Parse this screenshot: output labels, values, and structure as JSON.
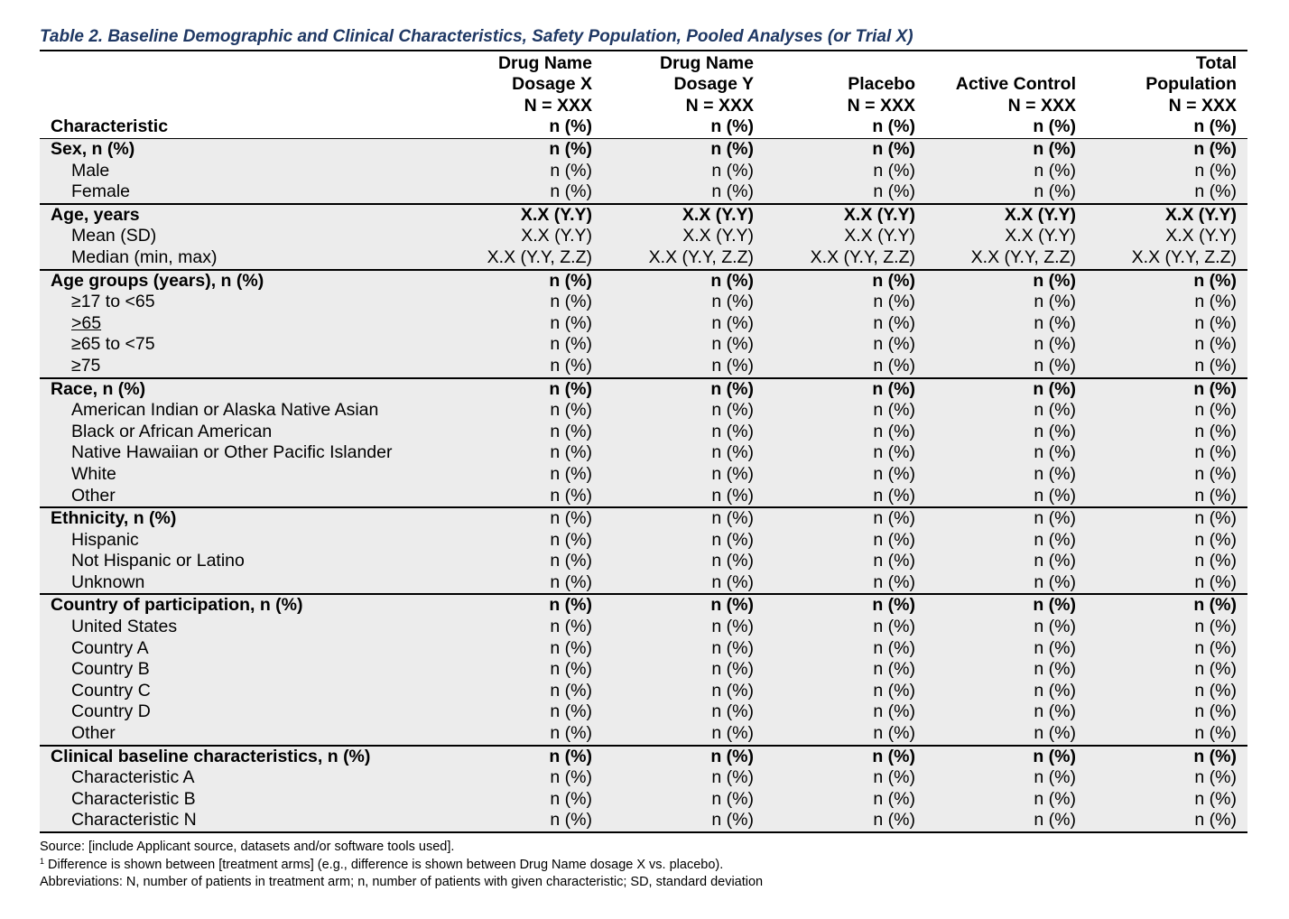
{
  "title": "Table 2. Baseline Demographic and Clinical Characteristics, Safety Population, Pooled Analyses (or Trial X)",
  "header": {
    "characteristic": "Characteristic",
    "columns": [
      {
        "line1": "Drug Name",
        "line2": "Dosage X",
        "line3": "N = XXX",
        "line4": "n (%)"
      },
      {
        "line1": "Drug Name",
        "line2": "Dosage Y",
        "line3": "N = XXX",
        "line4": "n (%)"
      },
      {
        "line1": "",
        "line2": "Placebo",
        "line3": "N = XXX",
        "line4": "n (%)"
      },
      {
        "line1": "",
        "line2": "Active Control",
        "line3": "N = XXX",
        "line4": "n (%)"
      },
      {
        "line1": "Total",
        "line2": "Population",
        "line3": "N = XXX",
        "line4": "n (%)"
      }
    ]
  },
  "sections": [
    {
      "rows": [
        {
          "label": "Sex, n (%)",
          "bold": true,
          "values": [
            "n (%)",
            "n (%)",
            "n (%)",
            "n (%)",
            "n (%)"
          ]
        },
        {
          "label": "Male",
          "bold": false,
          "values": [
            "n (%)",
            "n (%)",
            "n (%)",
            "n (%)",
            "n (%)"
          ]
        },
        {
          "label": "Female",
          "bold": false,
          "values": [
            "n (%)",
            "n (%)",
            "n (%)",
            "n (%)",
            "n (%)"
          ]
        }
      ]
    },
    {
      "rows": [
        {
          "label": "Age, years",
          "bold": true,
          "values": [
            "X.X (Y.Y)",
            "X.X (Y.Y)",
            "X.X (Y.Y)",
            "X.X (Y.Y)",
            "X.X (Y.Y)"
          ]
        },
        {
          "label": "Mean (SD)",
          "bold": false,
          "values": [
            "X.X (Y.Y)",
            "X.X (Y.Y)",
            "X.X (Y.Y)",
            "X.X (Y.Y)",
            "X.X (Y.Y)"
          ]
        },
        {
          "label": "Median (min, max)",
          "bold": false,
          "values": [
            "X.X (Y.Y, Z.Z)",
            "X.X (Y.Y, Z.Z)",
            "X.X (Y.Y, Z.Z)",
            "X.X (Y.Y, Z.Z)",
            "X.X (Y.Y, Z.Z)"
          ]
        }
      ]
    },
    {
      "rows": [
        {
          "label": "Age groups (years), n (%)",
          "bold": true,
          "values": [
            "n (%)",
            "n (%)",
            "n (%)",
            "n (%)",
            "n (%)"
          ]
        },
        {
          "label": "≥17 to <65",
          "bold": false,
          "values": [
            "n (%)",
            "n (%)",
            "n (%)",
            "n (%)",
            "n (%)"
          ]
        },
        {
          "label": ">65",
          "bold": false,
          "underline": true,
          "values": [
            "n (%)",
            "n (%)",
            "n (%)",
            "n (%)",
            "n (%)"
          ]
        },
        {
          "label": "≥65 to <75",
          "bold": false,
          "values": [
            "n (%)",
            "n (%)",
            "n (%)",
            "n (%)",
            "n (%)"
          ]
        },
        {
          "label": "≥75",
          "bold": false,
          "values": [
            "n (%)",
            "n (%)",
            "n (%)",
            "n (%)",
            "n (%)"
          ]
        }
      ]
    },
    {
      "rows": [
        {
          "label": "Race, n (%)",
          "bold": true,
          "values": [
            "n (%)",
            "n (%)",
            "n (%)",
            "n (%)",
            "n (%)"
          ]
        },
        {
          "label": "American Indian or Alaska Native Asian",
          "bold": false,
          "values": [
            "n (%)",
            "n (%)",
            "n (%)",
            "n (%)",
            "n (%)"
          ]
        },
        {
          "label": "Black or African American",
          "bold": false,
          "values": [
            "n (%)",
            "n (%)",
            "n (%)",
            "n (%)",
            "n (%)"
          ]
        },
        {
          "label": "Native Hawaiian or Other Pacific Islander",
          "bold": false,
          "values": [
            "n (%)",
            "n (%)",
            "n (%)",
            "n (%)",
            "n (%)"
          ]
        },
        {
          "label": "White",
          "bold": false,
          "values": [
            "n (%)",
            "n (%)",
            "n (%)",
            "n (%)",
            "n (%)"
          ]
        },
        {
          "label": "Other",
          "bold": false,
          "values": [
            "n (%)",
            "n (%)",
            "n (%)",
            "n (%)",
            "n (%)"
          ]
        }
      ]
    },
    {
      "rows": [
        {
          "label": "Ethnicity, n (%)",
          "bold": true,
          "valuesBold": false,
          "values": [
            "n (%)",
            "n (%)",
            "n (%)",
            "n (%)",
            "n (%)"
          ]
        },
        {
          "label": "Hispanic",
          "bold": false,
          "values": [
            "n (%)",
            "n (%)",
            "n (%)",
            "n (%)",
            "n (%)"
          ]
        },
        {
          "label": "Not Hispanic or Latino",
          "bold": false,
          "values": [
            "n (%)",
            "n (%)",
            "n (%)",
            "n (%)",
            "n (%)"
          ]
        },
        {
          "label": "Unknown",
          "bold": false,
          "values": [
            "n (%)",
            "n (%)",
            "n (%)",
            "n (%)",
            "n (%)"
          ]
        }
      ]
    },
    {
      "rows": [
        {
          "label": "Country of participation, n (%)",
          "bold": true,
          "values": [
            "n (%)",
            "n (%)",
            "n (%)",
            "n (%)",
            "n (%)"
          ]
        },
        {
          "label": "United States",
          "bold": false,
          "values": [
            "n (%)",
            "n (%)",
            "n (%)",
            "n (%)",
            "n (%)"
          ]
        },
        {
          "label": "Country A",
          "bold": false,
          "values": [
            "n (%)",
            "n (%)",
            "n (%)",
            "n (%)",
            "n (%)"
          ]
        },
        {
          "label": "Country B",
          "bold": false,
          "values": [
            "n (%)",
            "n (%)",
            "n (%)",
            "n (%)",
            "n (%)"
          ]
        },
        {
          "label": "Country C",
          "bold": false,
          "values": [
            "n (%)",
            "n (%)",
            "n (%)",
            "n (%)",
            "n (%)"
          ]
        },
        {
          "label": "Country D",
          "bold": false,
          "values": [
            "n (%)",
            "n (%)",
            "n (%)",
            "n (%)",
            "n (%)"
          ]
        },
        {
          "label": "Other",
          "bold": false,
          "values": [
            "n (%)",
            "n (%)",
            "n (%)",
            "n (%)",
            "n (%)"
          ]
        }
      ]
    },
    {
      "rows": [
        {
          "label": "Clinical baseline characteristics, n (%)",
          "bold": true,
          "values": [
            "n (%)",
            "n (%)",
            "n (%)",
            "n (%)",
            "n (%)"
          ]
        },
        {
          "label": "Characteristic A",
          "bold": false,
          "values": [
            "n (%)",
            "n (%)",
            "n (%)",
            "n (%)",
            "n (%)"
          ]
        },
        {
          "label": "Characteristic B",
          "bold": false,
          "values": [
            "n (%)",
            "n (%)",
            "n (%)",
            "n (%)",
            "n (%)"
          ]
        },
        {
          "label": "Characteristic N",
          "bold": false,
          "values": [
            "n (%)",
            "n (%)",
            "n (%)",
            "n (%)",
            "n (%)"
          ]
        }
      ]
    }
  ],
  "footnotes": {
    "source": "Source: [include Applicant source, datasets and/or software tools used].",
    "note_marker": "1",
    "note": " Difference is shown between [treatment arms] (e.g., difference is shown between Drug Name dosage X vs. placebo).",
    "abbreviations": "Abbreviations: N, number of patients in treatment arm; n, number of patients with given characteristic; SD, standard deviation"
  },
  "colors": {
    "title": "#1f3864",
    "shading": "#ececec"
  }
}
